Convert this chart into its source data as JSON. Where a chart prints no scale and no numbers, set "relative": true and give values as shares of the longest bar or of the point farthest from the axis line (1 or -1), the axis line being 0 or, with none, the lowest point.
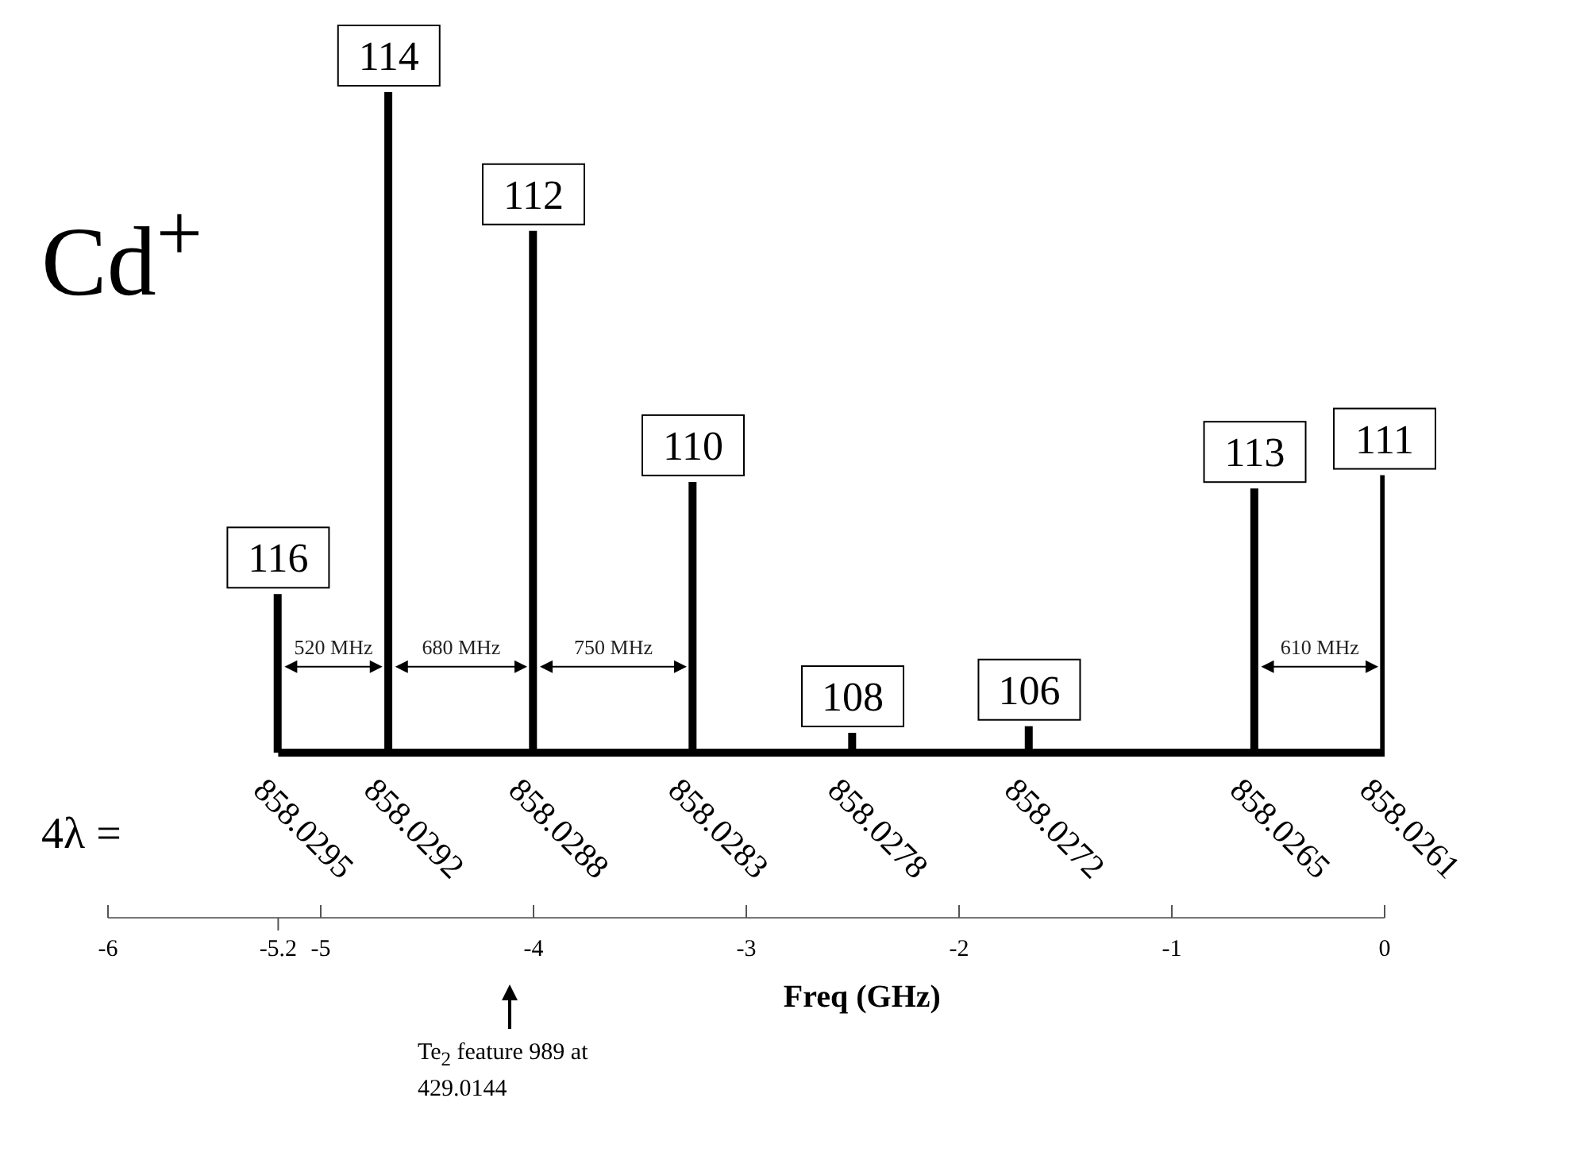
{
  "chart_data": {
    "type": "bar",
    "relative": true,
    "title": "Cd$^{+}$",
    "xlabel": "Freq (GHz)",
    "color": "#000000",
    "x": [
      -5.2,
      -4.68,
      -4.0,
      -3.25,
      -2.5,
      -1.67,
      -0.61,
      0
    ],
    "values": [
      0.24,
      1,
      0.79,
      0.41,
      0.03,
      0.04,
      0.4,
      0.42
    ],
    "xlim": [
      -6,
      0
    ],
    "xticks": [
      -6,
      {
        "value": -5.2,
        "label": "-5.2"
      },
      -5,
      -4,
      -3,
      -2,
      -1,
      0
    ],
    "annotations": [
      "4λ =",
      {
        "text": "116",
        "x": -5.2,
        "y": 0.24
      },
      {
        "text": "114",
        "x": -4.68,
        "y": 1
      },
      {
        "text": "112",
        "x": -4.0,
        "y": 0.79
      },
      {
        "text": "110",
        "x": -3.25,
        "y": 0.41
      },
      {
        "text": "108",
        "x": -2.5,
        "y": 0.03
      },
      {
        "text": "106",
        "x": -1.67,
        "y": 0.04
      },
      {
        "text": "113",
        "x": -0.61,
        "y": 0.4
      },
      {
        "text": "111",
        "x": 0,
        "y": 0.42
      },
      {
        "text": "858.0295",
        "x": -5.2,
        "y": 0
      },
      {
        "text": "858.0292",
        "x": -4.68,
        "y": 0
      },
      {
        "text": "858.0288",
        "x": -4.0,
        "y": 0
      },
      {
        "text": "858.0283",
        "x": -3.25,
        "y": 0
      },
      {
        "text": "858.0278",
        "x": -2.5,
        "y": 0
      },
      {
        "text": "858.0272",
        "x": -1.67,
        "y": 0
      },
      {
        "text": "858.0265",
        "x": -0.61,
        "y": 0
      },
      {
        "text": "858.0261",
        "x": 0,
        "y": 0
      },
      "520 MHz",
      "680 MHz",
      "750 MHz",
      "610 MHz",
      "Te$_{2}$ feature 989 at 429.0144"
    ]
  }
}
